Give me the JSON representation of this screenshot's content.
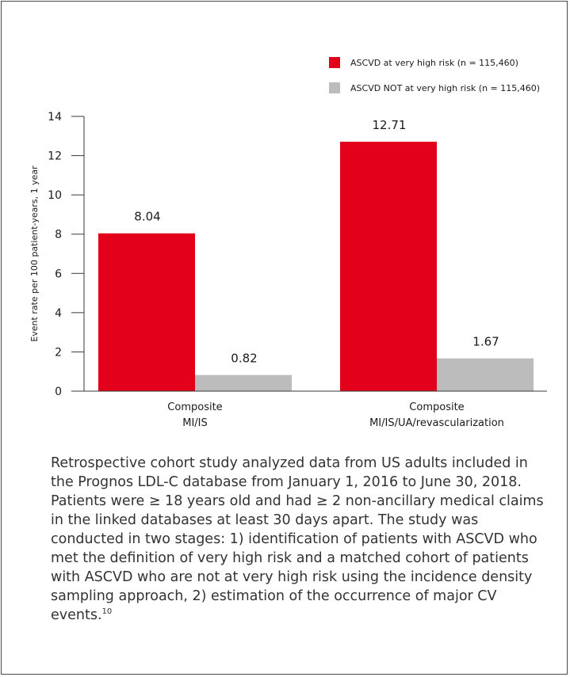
{
  "chart_data": {
    "type": "bar",
    "categories": [
      [
        "Composite",
        "MI/IS"
      ],
      [
        "Composite",
        "MI/IS/UA/revascularization"
      ]
    ],
    "series": [
      {
        "name": "ASCVD at very high risk (n = 115,460)",
        "values": [
          8.04,
          12.71
        ],
        "color": "#e3001b"
      },
      {
        "name": "ASCVD NOT at very high risk (n = 115,460)",
        "values": [
          0.82,
          1.67
        ],
        "color": "#bcbcbc"
      }
    ],
    "value_labels": [
      [
        "8.04",
        "12.71"
      ],
      [
        "0.82",
        "1.67"
      ]
    ],
    "ylabel": "Event rate per 100 patient-years, 1 year",
    "ylim": [
      0,
      14
    ],
    "yticks": [
      0,
      2,
      4,
      6,
      8,
      10,
      12,
      14
    ],
    "grid": false,
    "legend_position": "top-right"
  },
  "caption": {
    "text": "Retrospective cohort study analyzed data from US adults included in the Prognos LDL-C database from January 1, 2016 to June 30, 2018. Patients were ≥ 18 years old and had ≥ 2 non-ancillary medical claims in the linked databases at least 30 days apart. The study was conducted in two stages: 1) identification of patients with ASCVD who met the definition of very high risk and a matched cohort of patients with ASCVD who are not at very high risk using the incidence density sampling approach, 2) estimation of the occurrence of major CV events.",
    "reference": "10"
  }
}
